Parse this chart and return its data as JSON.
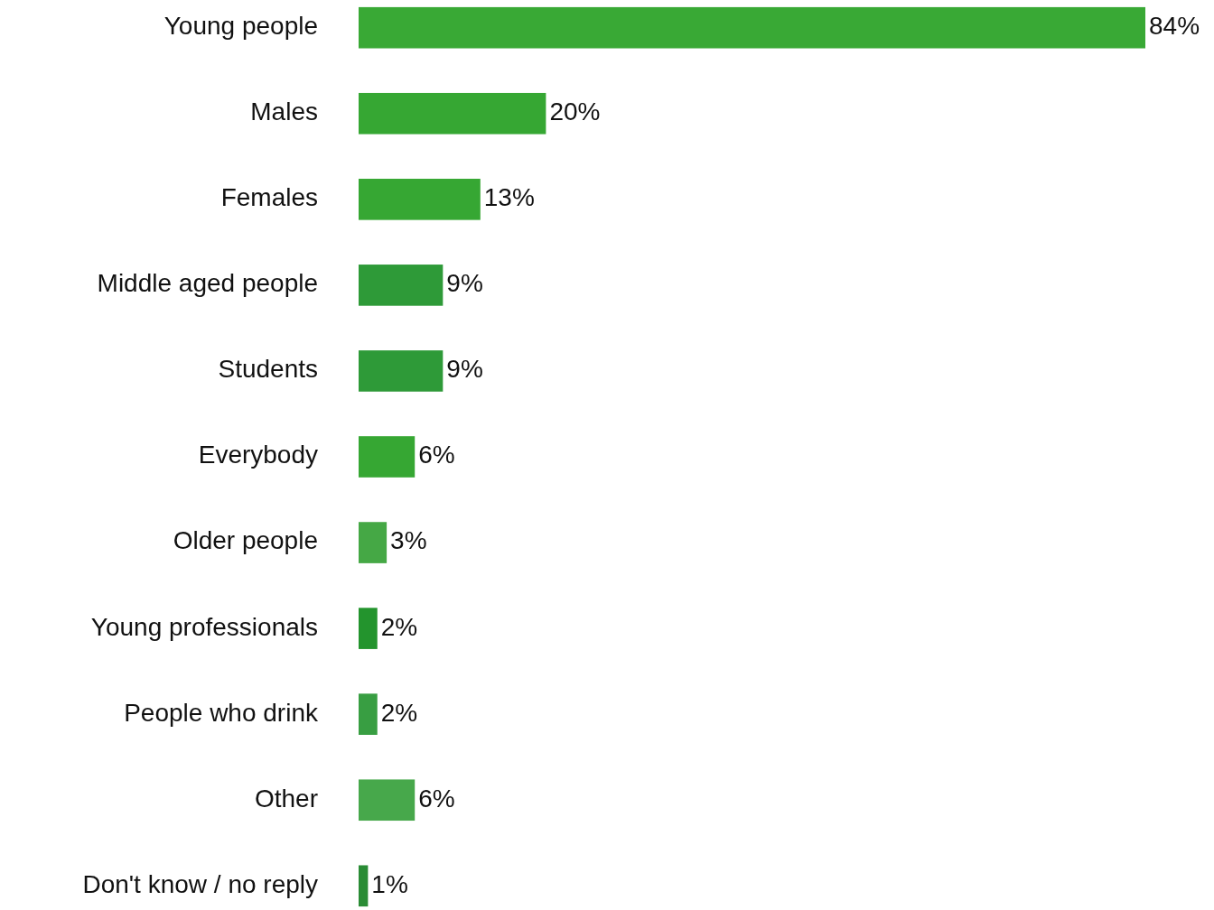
{
  "chart_data": {
    "type": "bar",
    "orientation": "horizontal",
    "categories": [
      "Young people",
      "Males",
      "Females",
      "Middle aged people",
      "Students",
      "Everybody",
      "Older people",
      "Young professionals",
      "People who drink",
      "Other",
      "Don't know / no reply"
    ],
    "values": [
      84,
      20,
      13,
      9,
      9,
      6,
      3,
      2,
      2,
      6,
      1
    ],
    "colors": [
      "#39a935",
      "#36a733",
      "#36a733",
      "#2e9a38",
      "#2e9a38",
      "#36a733",
      "#45a845",
      "#23942d",
      "#389e42",
      "#47a84b",
      "#2a8c35"
    ],
    "value_labels": [
      "84%",
      "20%",
      "13%",
      "9%",
      "9%",
      "6%",
      "3%",
      "2%",
      "2%",
      "6%",
      "1%"
    ]
  }
}
